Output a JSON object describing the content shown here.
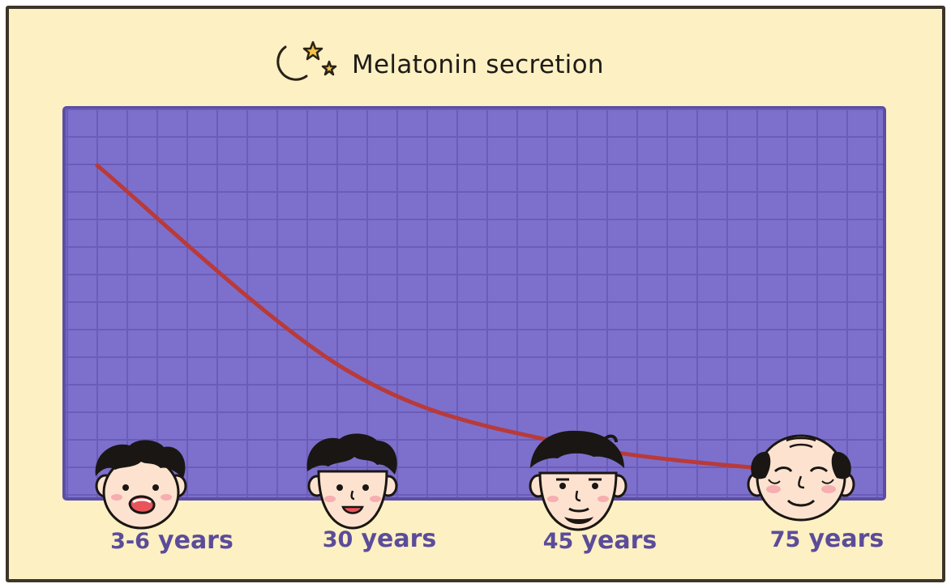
{
  "title": "Melatonin secretion",
  "title_icon": "moon-and-stars-icon",
  "colors": {
    "background": "#fdf0c2",
    "border": "#3e352a",
    "plot_fill": "#7d70cc",
    "grid": "#6a5cb8",
    "curve": "#b83a3a",
    "label": "#5b4c9a"
  },
  "chart_data": {
    "type": "line",
    "title": "Melatonin secretion",
    "xlabel": "",
    "ylabel": "",
    "grid": true,
    "categories": [
      "3-6 years",
      "30 years",
      "45 years",
      "75 years"
    ],
    "series": [
      {
        "values": [
          100,
          39,
          17,
          8
        ]
      }
    ],
    "ylim": [
      0,
      110
    ],
    "arrow_at_end": true
  },
  "age_labels": [
    {
      "num": "3-6",
      "unit": "years"
    },
    {
      "num": "30",
      "unit": "years"
    },
    {
      "num": "45",
      "unit": "years"
    },
    {
      "num": "75",
      "unit": "years"
    }
  ],
  "faces": [
    "child-face-icon",
    "young-adult-face-icon",
    "middle-aged-face-icon",
    "elderly-face-icon"
  ]
}
